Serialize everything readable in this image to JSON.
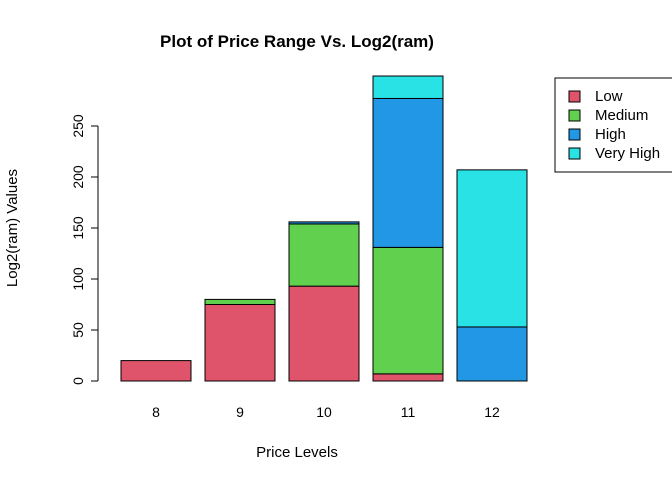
{
  "chart_data": {
    "type": "bar",
    "stacked": true,
    "title": "Plot of Price Range Vs. Log2(ram)",
    "xlabel": "Price Levels",
    "ylabel": "Log2(ram) Values",
    "categories": [
      "8",
      "9",
      "10",
      "11",
      "12"
    ],
    "series": [
      {
        "name": "Low",
        "color": "#DF536B",
        "values": [
          20,
          75,
          93,
          7,
          0
        ]
      },
      {
        "name": "Medium",
        "color": "#61D04F",
        "values": [
          0,
          5,
          61,
          124,
          0
        ]
      },
      {
        "name": "High",
        "color": "#2297E6",
        "values": [
          0,
          0,
          2,
          146,
          53
        ]
      },
      {
        "name": "Very High",
        "color": "#28E2E5",
        "values": [
          0,
          0,
          0,
          22,
          154
        ]
      }
    ],
    "yticks": [
      0,
      50,
      100,
      150,
      200,
      250
    ],
    "ylim": [
      0,
      297
    ],
    "grid": false,
    "legend_position": "top-right"
  }
}
